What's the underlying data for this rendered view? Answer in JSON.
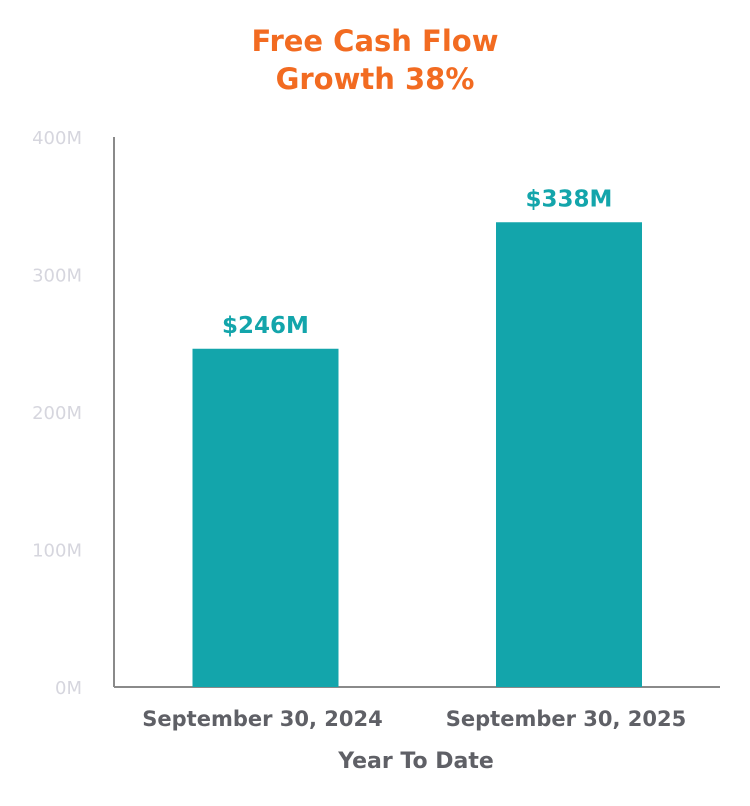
{
  "chart_data": {
    "type": "bar",
    "title": [
      "Free Cash Flow",
      "Growth 38%"
    ],
    "categories": [
      "September 30, 2024",
      "September 30, 2025"
    ],
    "values": [
      246,
      338
    ],
    "data_labels": [
      "$246M",
      "$338M"
    ],
    "xlabel": "Year To Date",
    "ylabel": "",
    "ylim": [
      0,
      400
    ],
    "yticks": [
      0,
      100,
      200,
      300,
      400
    ],
    "ytick_labels": [
      "0M",
      "100M",
      "200M",
      "300M",
      "400M"
    ],
    "grid": false,
    "colors": {
      "bar": "#13a5ab",
      "title": "#f26b21",
      "data_label": "#13a5ab",
      "axis_text": "#5f6066",
      "tick_text": "#d6d6de",
      "axis_line": "#8a8a8a"
    }
  }
}
